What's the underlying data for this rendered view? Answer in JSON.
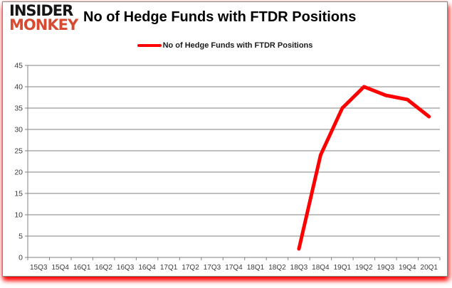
{
  "brand": {
    "line1": "INSIDER",
    "line2": "MONKEY",
    "color_primary": "#151515",
    "color_accent": "#d74b32"
  },
  "header": {
    "title": "No of Hedge Funds with FTDR Positions"
  },
  "legend": {
    "label": "No of Hedge Funds with FTDR Positions",
    "swatch_color": "#ff0000"
  },
  "chart_data": {
    "type": "line",
    "title": "No of Hedge Funds with FTDR Positions",
    "categories": [
      "15Q3",
      "15Q4",
      "16Q1",
      "16Q2",
      "16Q3",
      "16Q4",
      "17Q1",
      "17Q2",
      "17Q3",
      "17Q4",
      "18Q1",
      "18Q2",
      "18Q3",
      "18Q4",
      "19Q1",
      "19Q2",
      "19Q3",
      "19Q4",
      "20Q1"
    ],
    "series": [
      {
        "name": "No of Hedge Funds with FTDR Positions",
        "color": "#ff0000",
        "values": [
          null,
          null,
          null,
          null,
          null,
          null,
          null,
          null,
          null,
          null,
          null,
          null,
          2,
          24,
          35,
          40,
          38,
          37,
          33
        ]
      }
    ],
    "ylim": [
      0,
      45
    ],
    "ytick_step": 5,
    "xlabel": "",
    "ylabel": "",
    "grid": true,
    "gridline_color": "#808080",
    "axis_color": "#808080",
    "legend_position": "top-center"
  }
}
